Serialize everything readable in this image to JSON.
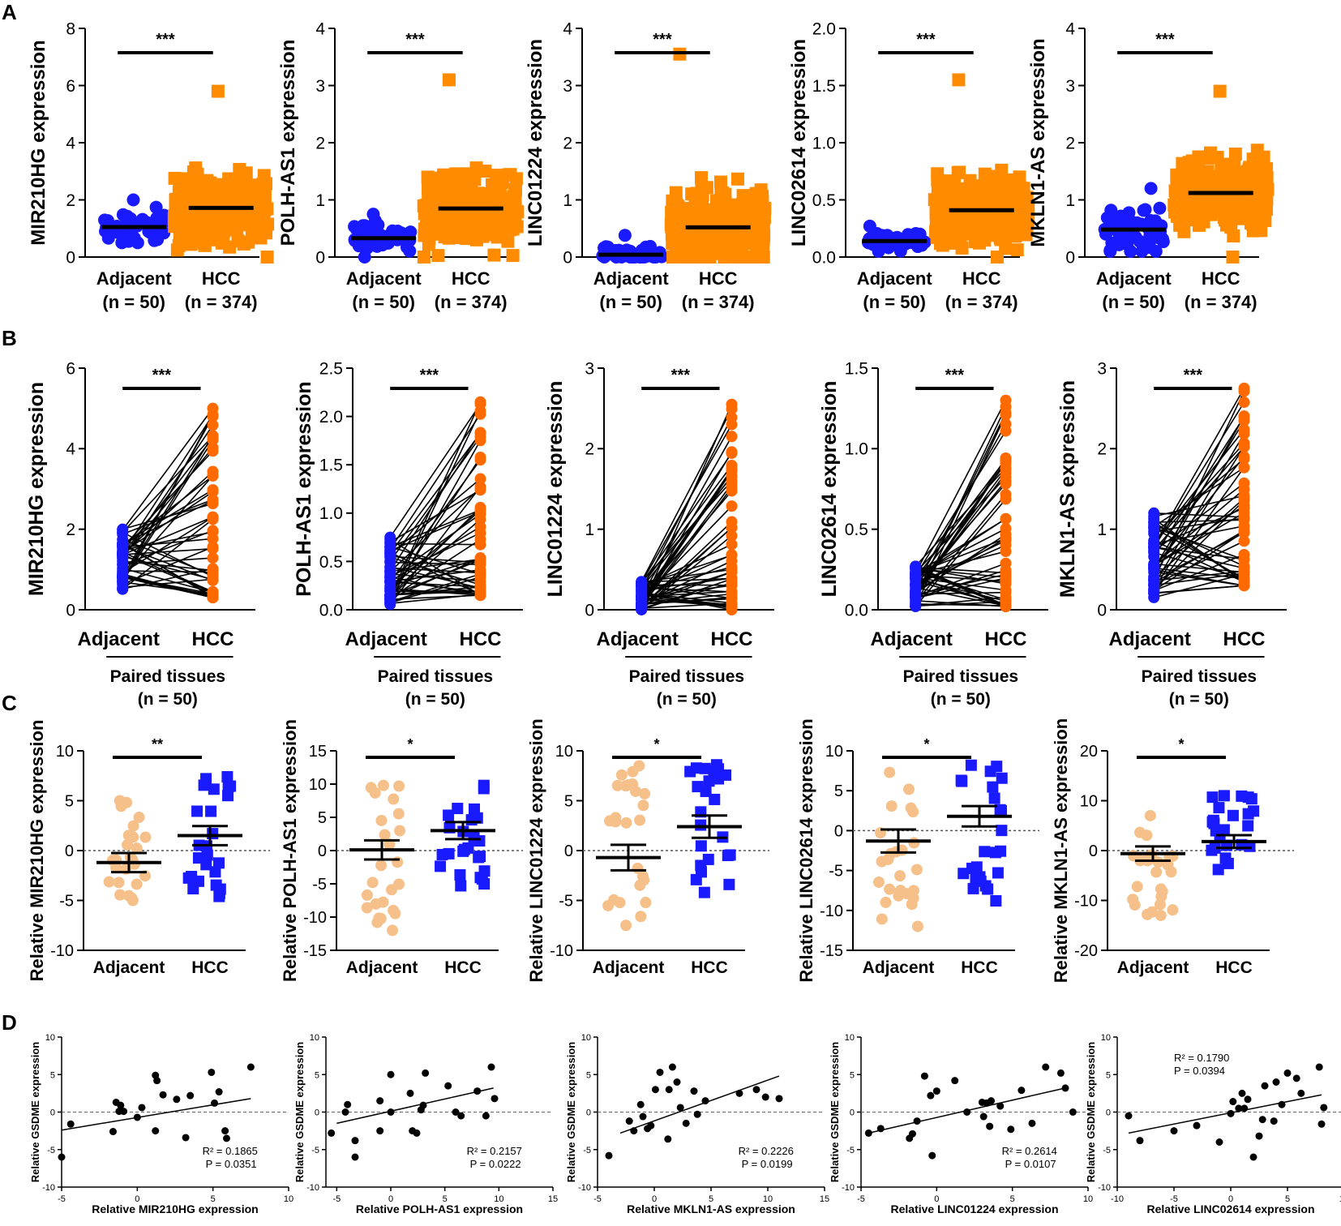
{
  "panel_letters": [
    "A",
    "B",
    "C",
    "D"
  ],
  "colors": {
    "adjacent_a": "#1a1aff",
    "hcc_a": "#ff8c00",
    "adjacent_b": "#1a1aff",
    "hcc_b": "#ff6a00",
    "adjacent_c": "#f5c08a",
    "hcc_c": "#1a1aff",
    "point_d": "#000000"
  },
  "chart_data": [
    {
      "panel": "A",
      "type": "scatter",
      "ylabel": "MIR210HG expression",
      "ylim": [
        0,
        8
      ],
      "yticks": [
        "0",
        "2",
        "4",
        "6",
        "8"
      ],
      "categories": [
        "Adjacent",
        "HCC"
      ],
      "n_labels": [
        "(n = 50)",
        "(n = 374)"
      ],
      "means": [
        1.05,
        1.72
      ],
      "ranges": [
        [
          0.5,
          2.0
        ],
        [
          0.0,
          5.8
        ]
      ],
      "sig": "***"
    },
    {
      "panel": "A",
      "type": "scatter",
      "ylabel": "POLH-AS1 expression",
      "ylim": [
        0,
        4
      ],
      "yticks": [
        "0",
        "1",
        "2",
        "3",
        "4"
      ],
      "categories": [
        "Adjacent",
        "HCC"
      ],
      "n_labels": [
        "(n = 50)",
        "(n = 374)"
      ],
      "means": [
        0.33,
        0.85
      ],
      "ranges": [
        [
          0.0,
          0.75
        ],
        [
          0.0,
          3.1
        ]
      ],
      "sig": "***"
    },
    {
      "panel": "A",
      "type": "scatter",
      "ylabel": "LINC01224 expression",
      "ylim": [
        0,
        4
      ],
      "yticks": [
        "0",
        "1",
        "2",
        "3",
        "4"
      ],
      "categories": [
        "Adjacent",
        "HCC"
      ],
      "n_labels": [
        "(n = 50)",
        "(n = 374)"
      ],
      "means": [
        0.04,
        0.52
      ],
      "ranges": [
        [
          0.0,
          0.38
        ],
        [
          0.0,
          3.55
        ]
      ],
      "sig": "***"
    },
    {
      "panel": "A",
      "type": "scatter",
      "ylabel": "LINC02614 expression",
      "ylim": [
        0,
        2
      ],
      "yticks": [
        "0.0",
        "0.5",
        "1.0",
        "1.5",
        "2.0"
      ],
      "categories": [
        "Adjacent",
        "HCC"
      ],
      "n_labels": [
        "(n = 50)",
        "(n = 374)"
      ],
      "means": [
        0.14,
        0.41
      ],
      "ranges": [
        [
          0.05,
          0.27
        ],
        [
          0.0,
          1.55
        ]
      ],
      "sig": "***"
    },
    {
      "panel": "A",
      "type": "scatter",
      "ylabel": "MKLN1-AS expression",
      "ylim": [
        0,
        4
      ],
      "yticks": [
        "0",
        "1",
        "2",
        "3",
        "4"
      ],
      "categories": [
        "Adjacent",
        "HCC"
      ],
      "n_labels": [
        "(n = 50)",
        "(n = 374)"
      ],
      "means": [
        0.48,
        1.12
      ],
      "ranges": [
        [
          0.1,
          1.2
        ],
        [
          0.0,
          2.9
        ]
      ],
      "sig": "***"
    },
    {
      "panel": "B",
      "type": "paired",
      "ylabel": "MIR210HG expression",
      "ylim": [
        0,
        6
      ],
      "yticks": [
        "0",
        "2",
        "4",
        "6"
      ],
      "categories": [
        "Adjacent",
        "HCC"
      ],
      "group_label": "Paired tissues",
      "n_label": "(n = 50)",
      "ranges": [
        [
          0.5,
          2.0
        ],
        [
          0.3,
          5.0
        ]
      ],
      "sig": "***"
    },
    {
      "panel": "B",
      "type": "paired",
      "ylabel": "POLH-AS1 expression",
      "ylim": [
        0,
        2.5
      ],
      "yticks": [
        "0.0",
        "0.5",
        "1.0",
        "1.5",
        "2.0",
        "2.5"
      ],
      "categories": [
        "Adjacent",
        "HCC"
      ],
      "group_label": "Paired tissues",
      "n_label": "(n = 50)",
      "ranges": [
        [
          0.05,
          0.75
        ],
        [
          0.15,
          2.15
        ]
      ],
      "sig": "***"
    },
    {
      "panel": "B",
      "type": "paired",
      "ylabel": "LINC01224 expression",
      "ylim": [
        0,
        3
      ],
      "yticks": [
        "0",
        "1",
        "2",
        "3"
      ],
      "categories": [
        "Adjacent",
        "HCC"
      ],
      "group_label": "Paired tissues",
      "n_label": "(n = 50)",
      "ranges": [
        [
          0.0,
          0.35
        ],
        [
          0.0,
          2.55
        ]
      ],
      "sig": "***"
    },
    {
      "panel": "B",
      "type": "paired",
      "ylabel": "LINC02614 expression",
      "ylim": [
        0,
        1.5
      ],
      "yticks": [
        "0.0",
        "0.5",
        "1.0",
        "1.5"
      ],
      "categories": [
        "Adjacent",
        "HCC"
      ],
      "group_label": "Paired tissues",
      "n_label": "(n = 50)",
      "ranges": [
        [
          0.02,
          0.27
        ],
        [
          0.02,
          1.3
        ]
      ],
      "sig": "***"
    },
    {
      "panel": "B",
      "type": "paired",
      "ylabel": "MKLN1-AS expression",
      "ylim": [
        0,
        3
      ],
      "yticks": [
        "0",
        "1",
        "2",
        "3"
      ],
      "categories": [
        "Adjacent",
        "HCC"
      ],
      "group_label": "Paired tissues",
      "n_label": "(n = 50)",
      "ranges": [
        [
          0.15,
          1.2
        ],
        [
          0.3,
          2.75
        ]
      ],
      "sig": "***"
    },
    {
      "panel": "C",
      "type": "scatter",
      "ylabel": "Relative MIR210HG expression",
      "ylim": [
        -10,
        10
      ],
      "yticks": [
        "-10",
        "-5",
        "0",
        "5",
        "10"
      ],
      "categories": [
        "Adjacent",
        "HCC"
      ],
      "means": [
        -1.2,
        1.5
      ],
      "ranges": [
        [
          -5.0,
          5.0
        ],
        [
          -4.6,
          7.4
        ]
      ],
      "sem": [
        0.6,
        0.6
      ],
      "sig": "**"
    },
    {
      "panel": "C",
      "type": "scatter",
      "ylabel": "Relative POLH-AS1 expression",
      "ylim": [
        -15,
        15
      ],
      "yticks": [
        "-15",
        "-10",
        "-5",
        "0",
        "5",
        "10",
        "15"
      ],
      "categories": [
        "Adjacent",
        "HCC"
      ],
      "means": [
        0.1,
        3.0
      ],
      "ranges": [
        [
          -12.0,
          9.8
        ],
        [
          -5.3,
          9.8
        ]
      ],
      "sem": [
        0.9,
        0.8
      ],
      "sig": "*"
    },
    {
      "panel": "C",
      "type": "scatter",
      "ylabel": "Relative LINC01224 expression",
      "ylim": [
        -10,
        10
      ],
      "yticks": [
        "-10",
        "-5",
        "0",
        "5",
        "10"
      ],
      "categories": [
        "Adjacent",
        "HCC"
      ],
      "means": [
        -0.7,
        2.4
      ],
      "ranges": [
        [
          -7.5,
          8.5
        ],
        [
          -4.2,
          8.6
        ]
      ],
      "sem": [
        0.8,
        0.7
      ],
      "sig": "*"
    },
    {
      "panel": "C",
      "type": "scatter",
      "ylabel": "Relative LINC02614 expression",
      "ylim": [
        -15,
        10
      ],
      "yticks": [
        "-15",
        "-10",
        "-5",
        "0",
        "5",
        "10"
      ],
      "categories": [
        "Adjacent",
        "HCC"
      ],
      "means": [
        -1.3,
        1.8
      ],
      "ranges": [
        [
          -12.0,
          7.3
        ],
        [
          -8.8,
          8.2
        ]
      ],
      "sem": [
        0.9,
        0.8
      ],
      "sig": "*"
    },
    {
      "panel": "C",
      "type": "scatter",
      "ylabel": "Relative MKLN1-AS expression",
      "ylim": [
        -20,
        20
      ],
      "yticks": [
        "-20",
        "-10",
        "0",
        "10",
        "20"
      ],
      "categories": [
        "Adjacent",
        "HCC"
      ],
      "means": [
        -0.6,
        1.8
      ],
      "ranges": [
        [
          -13.0,
          7.0
        ],
        [
          -3.8,
          11.0
        ]
      ],
      "sem": [
        0.9,
        0.8
      ],
      "sig": "*"
    },
    {
      "panel": "D",
      "type": "scatter",
      "xlabel": "Relative MIR210HG expression",
      "ylabel": "Relative GSDME expression",
      "xlim": [
        -5,
        10
      ],
      "ylim": [
        -10,
        10
      ],
      "xticks": [
        "-5",
        "0",
        "5",
        "10"
      ],
      "yticks": [
        "-10",
        "-5",
        "0",
        "5",
        "10"
      ],
      "r2": "R² = 0.1865",
      "p": "P = 0.0351",
      "fit": [
        [
          -5,
          -2.4
        ],
        [
          7.5,
          1.8
        ]
      ],
      "points": [
        [
          -5,
          -6
        ],
        [
          -4.4,
          -1.6
        ],
        [
          -1.6,
          -2.6
        ],
        [
          -1.4,
          1.3
        ],
        [
          -1.2,
          0.1
        ],
        [
          -1.1,
          0.9
        ],
        [
          -0.9,
          0.1
        ],
        [
          0,
          -0.7
        ],
        [
          0.3,
          0.6
        ],
        [
          1.2,
          4.9
        ],
        [
          1.3,
          4.2
        ],
        [
          1.2,
          -2.5
        ],
        [
          1.7,
          2.3
        ],
        [
          2.6,
          1.7
        ],
        [
          3.2,
          -3.4
        ],
        [
          3.5,
          2.2
        ],
        [
          4.9,
          5.3
        ],
        [
          5.1,
          1.2
        ],
        [
          5.4,
          2.7
        ],
        [
          5.8,
          -2.5
        ],
        [
          5.9,
          -3.5
        ],
        [
          7.5,
          6
        ]
      ]
    },
    {
      "panel": "D",
      "type": "scatter",
      "xlabel": "Relative POLH-AS1 expression",
      "ylabel": "Relative GSDME expression",
      "xlim": [
        -6,
        15
      ],
      "ylim": [
        -10,
        10
      ],
      "xticks": [
        "-5",
        "0",
        "5",
        "10",
        "15"
      ],
      "yticks": [
        "-10",
        "-5",
        "0",
        "5",
        "10"
      ],
      "r2": "R² = 0.2157",
      "p": "P = 0.0222",
      "fit": [
        [
          -5,
          -1.5
        ],
        [
          9.5,
          3.2
        ]
      ],
      "points": [
        [
          -5.5,
          -2.8
        ],
        [
          -4.2,
          0
        ],
        [
          -4,
          1
        ],
        [
          -3.3,
          -3.8
        ],
        [
          -3.3,
          -6
        ],
        [
          -1,
          -2.5
        ],
        [
          -1,
          1.5
        ],
        [
          0,
          0
        ],
        [
          0,
          5
        ],
        [
          1.8,
          2.5
        ],
        [
          2,
          -2.5
        ],
        [
          2.4,
          -2.8
        ],
        [
          2.8,
          0.3
        ],
        [
          3,
          0.9
        ],
        [
          3.2,
          5.2
        ],
        [
          5.3,
          3.5
        ],
        [
          6,
          0
        ],
        [
          6.5,
          -0.5
        ],
        [
          8,
          2.8
        ],
        [
          8.8,
          -0.5
        ],
        [
          9.3,
          6
        ],
        [
          9.6,
          1.8
        ]
      ]
    },
    {
      "panel": "D",
      "type": "scatter",
      "xlabel": "Relative MKLN1-AS expression",
      "ylabel": "Relative GSDME expression",
      "xlim": [
        -5,
        15
      ],
      "ylim": [
        -10,
        10
      ],
      "xticks": [
        "-5",
        "0",
        "5",
        "10",
        "15"
      ],
      "yticks": [
        "-10",
        "-5",
        "0",
        "5",
        "10"
      ],
      "r2": "R² = 0.2226",
      "p": "P = 0.0199",
      "fit": [
        [
          -3,
          -2.8
        ],
        [
          11,
          4.8
        ]
      ],
      "points": [
        [
          -4,
          -5.8
        ],
        [
          -2.2,
          -1.2
        ],
        [
          -1.8,
          -2.5
        ],
        [
          -1.2,
          1
        ],
        [
          -1,
          -0.6
        ],
        [
          -0.6,
          -2.2
        ],
        [
          -0.3,
          -1.8
        ],
        [
          0.1,
          3
        ],
        [
          0.5,
          5.3
        ],
        [
          1.2,
          -3.6
        ],
        [
          1.3,
          3
        ],
        [
          1.6,
          6
        ],
        [
          2,
          4
        ],
        [
          2.3,
          0.6
        ],
        [
          2.8,
          -1.5
        ],
        [
          3.5,
          2.8
        ],
        [
          3.8,
          -0.3
        ],
        [
          4.5,
          1.5
        ],
        [
          7.5,
          2.5
        ],
        [
          9,
          3
        ],
        [
          9.8,
          2
        ],
        [
          11,
          1.8
        ]
      ]
    },
    {
      "panel": "D",
      "type": "scatter",
      "xlabel": "Relative LINC01224 expression",
      "ylabel": "Relative GSDME expression",
      "xlim": [
        -5,
        10
      ],
      "ylim": [
        -10,
        10
      ],
      "xticks": [
        "-5",
        "0",
        "5",
        "10"
      ],
      "yticks": [
        "-10",
        "-5",
        "0",
        "5",
        "10"
      ],
      "r2": "R² = 0.2614",
      "p": "P = 0.0107",
      "fit": [
        [
          -4.5,
          -2.8
        ],
        [
          8.7,
          3.3
        ]
      ],
      "points": [
        [
          -4.5,
          -2.8
        ],
        [
          -3.7,
          -2.2
        ],
        [
          -1.8,
          -3.5
        ],
        [
          -1.6,
          -2.9
        ],
        [
          -1.3,
          -1.2
        ],
        [
          -0.8,
          4.8
        ],
        [
          -0.4,
          2.2
        ],
        [
          -0.3,
          -5.8
        ],
        [
          0,
          2.8
        ],
        [
          1.2,
          4.2
        ],
        [
          2,
          0
        ],
        [
          3,
          1.3
        ],
        [
          3.1,
          -0.6
        ],
        [
          3.3,
          1.2
        ],
        [
          3.5,
          -1.9
        ],
        [
          3.6,
          1.5
        ],
        [
          4.2,
          0.8
        ],
        [
          4.9,
          -2.3
        ],
        [
          5.6,
          2.9
        ],
        [
          6.3,
          -1.5
        ],
        [
          7.2,
          6
        ],
        [
          8.2,
          5.2
        ],
        [
          8.5,
          3.2
        ],
        [
          9,
          0
        ]
      ]
    },
    {
      "panel": "D",
      "type": "scatter",
      "xlabel": "Relative LINC02614 expression",
      "ylabel": "Relative GSDME expression",
      "xlim": [
        -10,
        10
      ],
      "ylim": [
        -10,
        10
      ],
      "xticks": [
        "-10",
        "-5",
        "0",
        "5",
        "10"
      ],
      "yticks": [
        "-10",
        "-5",
        "0",
        "5",
        "10"
      ],
      "r2": "R² = 0.1790",
      "p": "P = 0.0394",
      "fit": [
        [
          -9,
          -2.8
        ],
        [
          8,
          2.3
        ]
      ],
      "points": [
        [
          -9,
          -0.5
        ],
        [
          -8,
          -3.8
        ],
        [
          -5,
          -2.5
        ],
        [
          -3,
          -1.8
        ],
        [
          -1,
          -4
        ],
        [
          0,
          -0.2
        ],
        [
          0.2,
          1.4
        ],
        [
          0.7,
          0.5
        ],
        [
          1,
          2.5
        ],
        [
          1.2,
          0.5
        ],
        [
          1.5,
          1.7
        ],
        [
          2,
          -6
        ],
        [
          2.5,
          -3.2
        ],
        [
          2.8,
          -1
        ],
        [
          3,
          3.5
        ],
        [
          3.8,
          -1.2
        ],
        [
          4,
          4
        ],
        [
          4.5,
          1
        ],
        [
          5,
          5.2
        ],
        [
          5.8,
          4.5
        ],
        [
          6.2,
          2.5
        ],
        [
          7.8,
          6
        ],
        [
          8,
          -1.6
        ],
        [
          8.2,
          0.6
        ]
      ]
    }
  ]
}
